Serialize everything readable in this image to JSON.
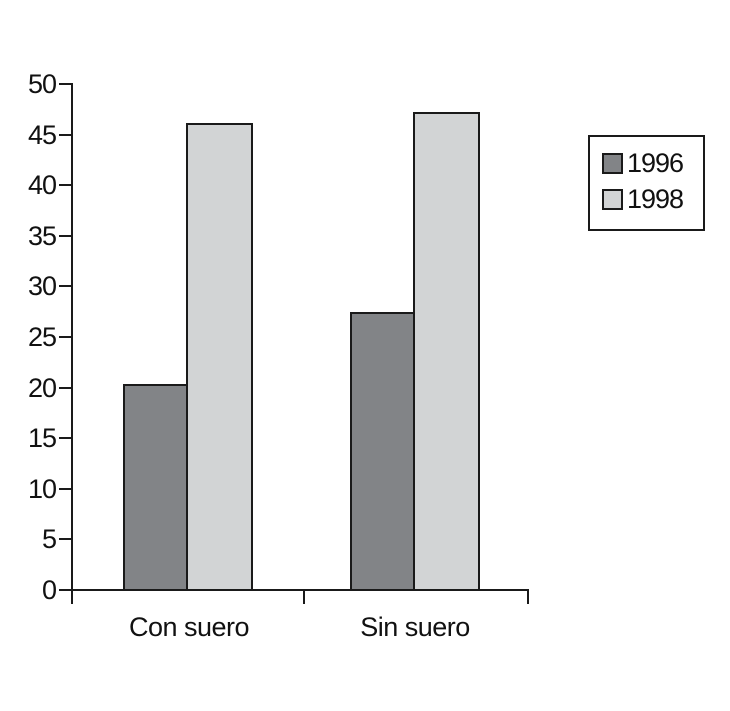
{
  "chart_data": {
    "type": "bar",
    "title": "",
    "xlabel": "",
    "ylabel": "",
    "categories": [
      "Con suero",
      "Sin suero"
    ],
    "series": [
      {
        "name": "1996",
        "color": "#828487",
        "values": [
          20.3,
          27.4
        ]
      },
      {
        "name": "1998",
        "color": "#d2d4d5",
        "values": [
          46.0,
          47.1
        ]
      }
    ],
    "ylim": [
      0,
      50
    ],
    "ytick_step": 5,
    "yticks": [
      0,
      5,
      10,
      15,
      20,
      25,
      30,
      35,
      40,
      45,
      50
    ],
    "grid": false,
    "legend_position": "right",
    "axis_color": "#1a1a1a",
    "background": "#ffffff"
  },
  "legend": {
    "entries": [
      {
        "label": "1996",
        "color": "#828487"
      },
      {
        "label": "1998",
        "color": "#d2d4d5"
      }
    ]
  }
}
